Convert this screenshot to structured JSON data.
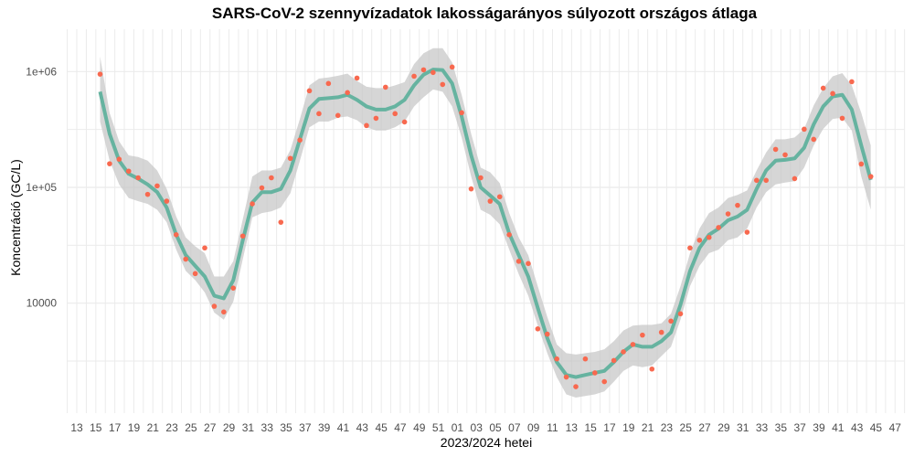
{
  "chart_data": {
    "type": "scatter",
    "title": "SARS-CoV-2 szennyvízadatok lakosságarányos súlyozott országos átlaga",
    "xlabel": "2023/2024 hetei",
    "ylabel": "Koncentráció (GC/L)",
    "y_scale": "log10",
    "ylim": [
      1000,
      2000000
    ],
    "y_ticks": [
      {
        "value": 1000000,
        "label": "1e+06"
      },
      {
        "value": 100000,
        "label": "1e+05"
      },
      {
        "value": 10000,
        "label": "10000"
      }
    ],
    "x_tick_labels": [
      "13",
      "15",
      "17",
      "19",
      "21",
      "23",
      "25",
      "27",
      "29",
      "31",
      "33",
      "35",
      "37",
      "39",
      "41",
      "43",
      "45",
      "47",
      "49",
      "51",
      "01",
      "03",
      "05",
      "07",
      "09",
      "11",
      "13",
      "15",
      "17",
      "19",
      "21",
      "23",
      "25",
      "27",
      "29",
      "31",
      "33",
      "35",
      "37",
      "39",
      "41",
      "43",
      "45",
      "47"
    ],
    "grid": true,
    "colors": {
      "points": "#f8694f",
      "smooth": "#66b3a0",
      "ribbon": "#c4c4c4"
    },
    "weeks": [
      "2023-15",
      "2023-16",
      "2023-17",
      "2023-18",
      "2023-19",
      "2023-20",
      "2023-21",
      "2023-22",
      "2023-23",
      "2023-24",
      "2023-25",
      "2023-26",
      "2023-27",
      "2023-28",
      "2023-29",
      "2023-30",
      "2023-31",
      "2023-32",
      "2023-33",
      "2023-34",
      "2023-35",
      "2023-36",
      "2023-37",
      "2023-38",
      "2023-39",
      "2023-40",
      "2023-41",
      "2023-42",
      "2023-43",
      "2023-44",
      "2023-45",
      "2023-46",
      "2023-47",
      "2023-48",
      "2023-49",
      "2023-50",
      "2023-51",
      "2023-52",
      "2024-01",
      "2024-02",
      "2024-03",
      "2024-04",
      "2024-05",
      "2024-06",
      "2024-07",
      "2024-08",
      "2024-09",
      "2024-10",
      "2024-11",
      "2024-12",
      "2024-13",
      "2024-14",
      "2024-15",
      "2024-16",
      "2024-17",
      "2024-18",
      "2024-19",
      "2024-20",
      "2024-21",
      "2024-22",
      "2024-23",
      "2024-24",
      "2024-25",
      "2024-26",
      "2024-27",
      "2024-28",
      "2024-29",
      "2024-30",
      "2024-31",
      "2024-32",
      "2024-33",
      "2024-34",
      "2024-35",
      "2024-36",
      "2024-37",
      "2024-38",
      "2024-39",
      "2024-40",
      "2024-41",
      "2024-42",
      "2024-43",
      "2024-44"
    ],
    "series": [
      {
        "kind": "points",
        "values": [
          950000,
          160000,
          175000,
          138000,
          121000,
          87000,
          103000,
          76000,
          39000,
          24000,
          18000,
          30000,
          9400,
          8400,
          13500,
          38000,
          72000,
          99000,
          121000,
          50000,
          178000,
          256000,
          682000,
          433000,
          789000,
          418000,
          658000,
          879000,
          342000,
          395000,
          733000,
          433000,
          367000,
          912000,
          1035000,
          982000,
          774000,
          1094000,
          441000,
          97000,
          121000,
          76000,
          83000,
          39000,
          23000,
          22000,
          6000,
          5400,
          3300,
          2300,
          1900,
          3300,
          2500,
          2100,
          3200,
          3800,
          4400,
          5300,
          2700,
          5600,
          7000,
          8100,
          30000,
          35000,
          37000,
          45000,
          59000,
          70000,
          41000,
          115000,
          115000,
          213000,
          191000,
          119000,
          318000,
          260000,
          719000,
          646000,
          395000,
          817000,
          159000,
          124000
        ]
      },
      {
        "kind": "smooth",
        "values": [
          670000.0,
          290000.0,
          170000.0,
          131000.0,
          119000.0,
          106000.0,
          91000.0,
          67000.0,
          39000.0,
          26000.0,
          21000.0,
          17000.0,
          11600.0,
          11000.0,
          15800.0,
          35000.0,
          74000.0,
          91000.0,
          91000.0,
          97000.0,
          140000.0,
          260000.0,
          480000.0,
          580000.0,
          590000.0,
          600000.0,
          630000.0,
          570000.0,
          500000.0,
          470000.0,
          470000.0,
          500000.0,
          570000.0,
          760000.0,
          940000.0,
          1040000.0,
          1030000.0,
          790000.0,
          410000.0,
          189000.0,
          100000.0,
          85000.0,
          72000.0,
          40000.0,
          26000.0,
          17000.0,
          9100.0,
          5000.0,
          3100.0,
          2400.0,
          2300.0,
          2400.0,
          2500.0,
          2600.0,
          3100.0,
          3800.0,
          4400.0,
          4200.0,
          4200.0,
          4700.0,
          5600.0,
          9700.0,
          18900.0,
          30000.0,
          39000.0,
          44000.0,
          52000.0,
          56000.0,
          64000.0,
          97000.0,
          140000.0,
          170000.0,
          173000.0,
          178000.0,
          220000.0,
          350000.0,
          500000.0,
          610000.0,
          630000.0,
          470000.0,
          230000.0,
          116000.0
        ],
        "lower": [
          370000.0,
          170000.0,
          106000.0,
          81000.0,
          76000.0,
          72000.0,
          64000.0,
          50000.0,
          29000.0,
          19000.0,
          15800.0,
          12400.0,
          8300.0,
          7200.0,
          10300.0,
          24000.0,
          55000.0,
          60000.0,
          62000.0,
          67000.0,
          89000.0,
          170000.0,
          330000.0,
          370000.0,
          370000.0,
          400000.0,
          410000.0,
          380000.0,
          330000.0,
          310000.0,
          310000.0,
          330000.0,
          370000.0,
          500000.0,
          600000.0,
          700000.0,
          670000.0,
          500000.0,
          270000.0,
          124000.0,
          64000.0,
          58000.0,
          48000.0,
          29000.0,
          17800.0,
          11600.0,
          6400.0,
          3700.0,
          2300.0,
          1630.0,
          1530.0,
          1580.0,
          1630.0,
          1730.0,
          2100.0,
          2600.0,
          2900.0,
          2800.0,
          2900.0,
          3500.0,
          4200.0,
          7200.0,
          14000.0,
          21000.0,
          27000.0,
          29000.0,
          35000.0,
          37000.0,
          44000.0,
          67000.0,
          91000.0,
          106000.0,
          110000.0,
          113000.0,
          148000.0,
          230000.0,
          320000.0,
          390000.0,
          400000.0,
          310000.0,
          124000.0,
          64000.0
        ],
        "upper": [
          1350000.0,
          440000.0,
          250000.0,
          189000.0,
          183000.0,
          170000.0,
          140000.0,
          97000.0,
          56000.0,
          37000.0,
          31000.0,
          27000.0,
          17000.0,
          17000.0,
          23000.0,
          53000.0,
          124000.0,
          140000.0,
          140000.0,
          148000.0,
          210000.0,
          390000.0,
          760000.0,
          870000.0,
          890000.0,
          920000.0,
          960000.0,
          830000.0,
          740000.0,
          720000.0,
          720000.0,
          760000.0,
          810000.0,
          1160000.0,
          1440000.0,
          1590000.0,
          1590000.0,
          1200000.0,
          630000.0,
          290000.0,
          148000.0,
          135000.0,
          109000.0,
          60000.0,
          37000.0,
          26000.0,
          14000.0,
          7600.0,
          4400.0,
          3700.0,
          3600.0,
          3700.0,
          3800.0,
          4000.0,
          4700.0,
          5800.0,
          6400.0,
          6500.0,
          6500.0,
          6700.0,
          8100.0,
          14000.0,
          27000.0,
          44000.0,
          60000.0,
          67000.0,
          81000.0,
          86000.0,
          94000.0,
          140000.0,
          200000.0,
          260000.0,
          260000.0,
          270000.0,
          320000.0,
          510000.0,
          720000.0,
          910000.0,
          970000.0,
          760000.0,
          440000.0,
          230000.0
        ]
      }
    ]
  }
}
